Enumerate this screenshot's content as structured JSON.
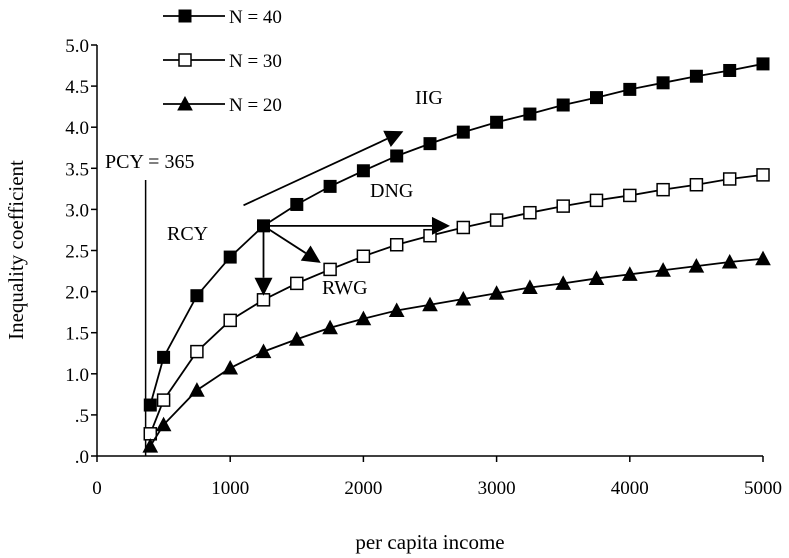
{
  "chart_data": {
    "type": "line",
    "title": "",
    "xlabel": "per capita income",
    "ylabel": "Inequality coefficient",
    "xlim": [
      0,
      5000
    ],
    "ylim": [
      0,
      5
    ],
    "x_ticks": [
      "0",
      "1000",
      "2000",
      "3000",
      "4000",
      "5000"
    ],
    "x_tick_values": [
      0,
      1000,
      2000,
      3000,
      4000,
      5000
    ],
    "y_ticks": [
      ".0",
      ".5",
      "1.0",
      "1.5",
      "2.0",
      "2.5",
      "3.0",
      "3.5",
      "4.0",
      "4.5",
      "5.0"
    ],
    "y_tick_values": [
      0,
      0.5,
      1,
      1.5,
      2,
      2.5,
      3,
      3.5,
      4,
      4.5,
      5
    ],
    "grid": false,
    "legend_position": "top-left",
    "series": [
      {
        "name": "N = 40",
        "marker": "filled-square",
        "x": [
          400,
          500,
          750,
          1000,
          1250,
          1500,
          1750,
          2000,
          2250,
          2500,
          2750,
          3000,
          3250,
          3500,
          3750,
          4000,
          4250,
          4500,
          4750,
          5000
        ],
        "y": [
          0.62,
          1.2,
          1.95,
          2.42,
          2.8,
          3.06,
          3.28,
          3.47,
          3.65,
          3.8,
          3.94,
          4.06,
          4.16,
          4.27,
          4.36,
          4.46,
          4.54,
          4.62,
          4.69,
          4.77
        ]
      },
      {
        "name": "N = 30",
        "marker": "open-square",
        "x": [
          400,
          500,
          750,
          1000,
          1250,
          1500,
          1750,
          2000,
          2250,
          2500,
          2750,
          3000,
          3250,
          3500,
          3750,
          4000,
          4250,
          4500,
          4750,
          5000
        ],
        "y": [
          0.27,
          0.68,
          1.27,
          1.65,
          1.9,
          2.1,
          2.27,
          2.43,
          2.57,
          2.68,
          2.78,
          2.87,
          2.96,
          3.04,
          3.11,
          3.17,
          3.24,
          3.3,
          3.37,
          3.42
        ]
      },
      {
        "name": "N = 20",
        "marker": "filled-triangle",
        "x": [
          400,
          500,
          750,
          1000,
          1250,
          1500,
          1750,
          2000,
          2250,
          2500,
          2750,
          3000,
          3250,
          3500,
          3750,
          4000,
          4250,
          4500,
          4750,
          5000
        ],
        "y": [
          0.12,
          0.38,
          0.8,
          1.07,
          1.27,
          1.42,
          1.56,
          1.67,
          1.77,
          1.84,
          1.91,
          1.98,
          2.05,
          2.1,
          2.16,
          2.21,
          2.26,
          2.31,
          2.36,
          2.4
        ]
      }
    ],
    "vertical_line": {
      "x": 365,
      "label": "PCY = 365"
    },
    "annotations": [
      {
        "label": "RCY",
        "at": [
          1250,
          2.8
        ]
      },
      {
        "label": "IIG",
        "from": [
          1100,
          3.05
        ],
        "to": [
          2300,
          3.95
        ]
      },
      {
        "label": "DNG",
        "from": [
          1250,
          2.8
        ],
        "to": [
          2650,
          2.8
        ]
      },
      {
        "label": "RWG",
        "from": [
          1250,
          2.8
        ],
        "to": [
          1680,
          2.35
        ]
      },
      {
        "label": "",
        "from": [
          1250,
          2.8
        ],
        "to": [
          1250,
          1.95
        ]
      }
    ]
  }
}
